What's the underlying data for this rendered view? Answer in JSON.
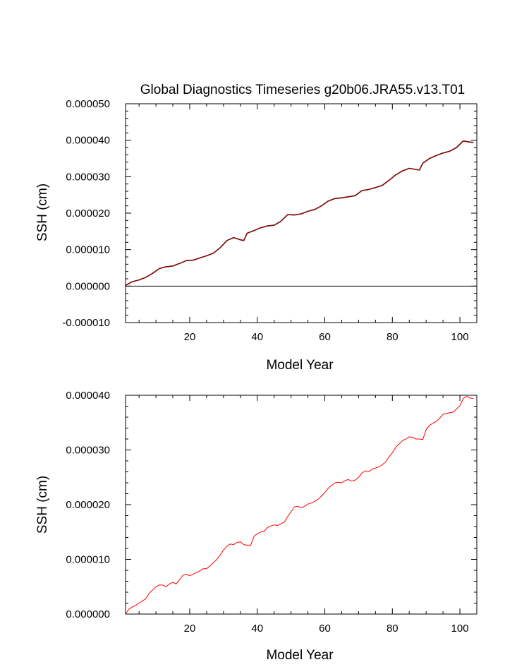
{
  "chart_data": [
    {
      "type": "line",
      "title": "Global Diagnostics Timeseries g20b06.JRA55.v13.T01",
      "xlabel": "Model Year",
      "ylabel": "SSH (cm)",
      "xlim": [
        1,
        105
      ],
      "ylim": [
        -1e-05,
        5e-05
      ],
      "xticks": [
        20,
        40,
        60,
        80,
        100
      ],
      "xtick_labels": [
        "20",
        "40",
        "60",
        "80",
        "100"
      ],
      "yticks": [
        -1e-05,
        0,
        1e-05,
        2e-05,
        3e-05,
        4e-05,
        5e-05
      ],
      "ytick_labels": [
        "-0.000010",
        "0.000000",
        "0.000010",
        "0.000020",
        "0.000030",
        "0.000040",
        "0.000050"
      ],
      "reference_line_y": 0,
      "grid": false,
      "series": [
        {
          "color": "#000000",
          "x": [
            1,
            3,
            5,
            7,
            9,
            11,
            13,
            15,
            17,
            19,
            21,
            23,
            25,
            27,
            29,
            31,
            33,
            35,
            36,
            37,
            39,
            41,
            43,
            45,
            47,
            49,
            51,
            53,
            55,
            57,
            59,
            61,
            63,
            65,
            67,
            69,
            71,
            73,
            75,
            77,
            79,
            81,
            83,
            85,
            87,
            88,
            89,
            91,
            93,
            95,
            97,
            99,
            101,
            103,
            104
          ],
          "values": [
            2e-07,
            1.2e-06,
            1.7e-06,
            2.4e-06,
            3.5e-06,
            4.8e-06,
            5.3e-06,
            5.5e-06,
            6.2e-06,
            7e-06,
            7.1e-06,
            7.7e-06,
            8.3e-06,
            9e-06,
            1.05e-05,
            1.25e-05,
            1.33e-05,
            1.27e-05,
            1.25e-05,
            1.45e-05,
            1.52e-05,
            1.6e-05,
            1.65e-05,
            1.67e-05,
            1.78e-05,
            1.96e-05,
            1.95e-05,
            1.98e-05,
            2.05e-05,
            2.1e-05,
            2.2e-05,
            2.33e-05,
            2.4e-05,
            2.42e-05,
            2.45e-05,
            2.48e-05,
            2.62e-05,
            2.65e-05,
            2.7e-05,
            2.76e-05,
            2.9e-05,
            3.05e-05,
            3.16e-05,
            3.23e-05,
            3.2e-05,
            3.18e-05,
            3.37e-05,
            3.5e-05,
            3.58e-05,
            3.65e-05,
            3.7e-05,
            3.8e-05,
            3.98e-05,
            3.95e-05,
            3.94e-05
          ]
        },
        {
          "color": "#c00000",
          "x": [
            1,
            3,
            5,
            7,
            9,
            11,
            13,
            15,
            17,
            19,
            21,
            23,
            25,
            27,
            29,
            31,
            33,
            35,
            36,
            37,
            39,
            41,
            43,
            45,
            47,
            49,
            51,
            53,
            55,
            57,
            59,
            61,
            63,
            65,
            67,
            69,
            71,
            73,
            75,
            77,
            79,
            81,
            83,
            85,
            87,
            88,
            89,
            91,
            93,
            95,
            97,
            99,
            101,
            103,
            104
          ],
          "values": [
            2e-07,
            1.2e-06,
            1.7e-06,
            2.4e-06,
            3.5e-06,
            4.8e-06,
            5.3e-06,
            5.5e-06,
            6.2e-06,
            7e-06,
            7.1e-06,
            7.7e-06,
            8.3e-06,
            9e-06,
            1.05e-05,
            1.25e-05,
            1.33e-05,
            1.27e-05,
            1.25e-05,
            1.45e-05,
            1.52e-05,
            1.6e-05,
            1.65e-05,
            1.67e-05,
            1.78e-05,
            1.96e-05,
            1.95e-05,
            1.98e-05,
            2.05e-05,
            2.1e-05,
            2.2e-05,
            2.33e-05,
            2.4e-05,
            2.42e-05,
            2.45e-05,
            2.48e-05,
            2.62e-05,
            2.65e-05,
            2.7e-05,
            2.76e-05,
            2.9e-05,
            3.05e-05,
            3.16e-05,
            3.23e-05,
            3.2e-05,
            3.18e-05,
            3.37e-05,
            3.5e-05,
            3.58e-05,
            3.65e-05,
            3.7e-05,
            3.8e-05,
            3.98e-05,
            3.95e-05,
            3.94e-05
          ]
        }
      ]
    },
    {
      "type": "line",
      "title": "",
      "xlabel": "Model Year",
      "ylabel": "SSH (cm)",
      "xlim": [
        1,
        105
      ],
      "ylim": [
        0,
        4e-05
      ],
      "xticks": [
        20,
        40,
        60,
        80,
        100
      ],
      "xtick_labels": [
        "20",
        "40",
        "60",
        "80",
        "100"
      ],
      "yticks": [
        0,
        1e-05,
        2e-05,
        3e-05,
        4e-05
      ],
      "ytick_labels": [
        "0.000000",
        "0.000010",
        "0.000020",
        "0.000030",
        "0.000040"
      ],
      "grid": false,
      "series": [
        {
          "color": "#ff0000",
          "x": [
            1,
            2,
            3,
            4,
            5,
            6,
            7,
            8,
            9,
            10,
            11,
            12,
            13,
            14,
            15,
            16,
            17,
            18,
            19,
            20,
            21,
            22,
            23,
            24,
            25,
            26,
            27,
            28,
            29,
            30,
            31,
            32,
            33,
            34,
            35,
            36,
            37,
            38,
            39,
            40,
            41,
            42,
            43,
            44,
            45,
            46,
            47,
            48,
            49,
            50,
            51,
            52,
            53,
            54,
            55,
            56,
            57,
            58,
            59,
            60,
            61,
            62,
            63,
            64,
            65,
            66,
            67,
            68,
            69,
            70,
            71,
            72,
            73,
            74,
            75,
            76,
            77,
            78,
            79,
            80,
            81,
            82,
            83,
            84,
            85,
            86,
            87,
            88,
            89,
            90,
            91,
            92,
            93,
            94,
            95,
            96,
            97,
            98,
            99,
            100,
            101,
            102,
            103,
            104
          ],
          "values": [
            0.0,
            9e-07,
            1.3e-06,
            1.6e-06,
            2e-06,
            2.4e-06,
            2.8e-06,
            3.8e-06,
            4.4e-06,
            5e-06,
            5.3e-06,
            5.3e-06,
            5e-06,
            5.5e-06,
            5.8e-06,
            5.5e-06,
            6.3e-06,
            7.1e-06,
            7.3e-06,
            7e-06,
            7.3e-06,
            7.6e-06,
            7.9e-06,
            8.3e-06,
            8.3e-06,
            8.8e-06,
            9.4e-06,
            1e-05,
            1.08e-05,
            1.17e-05,
            1.24e-05,
            1.28e-05,
            1.27e-05,
            1.31e-05,
            1.32e-05,
            1.27e-05,
            1.26e-05,
            1.25e-05,
            1.42e-05,
            1.47e-05,
            1.5e-05,
            1.51e-05,
            1.58e-05,
            1.61e-05,
            1.63e-05,
            1.62e-05,
            1.65e-05,
            1.68e-05,
            1.78e-05,
            1.87e-05,
            1.96e-05,
            1.97e-05,
            1.94e-05,
            1.97e-05,
            2.01e-05,
            2.03e-05,
            2.06e-05,
            2.1e-05,
            2.16e-05,
            2.22e-05,
            2.3e-05,
            2.35e-05,
            2.4e-05,
            2.41e-05,
            2.4e-05,
            2.44e-05,
            2.46e-05,
            2.43e-05,
            2.45e-05,
            2.5e-05,
            2.58e-05,
            2.62e-05,
            2.6e-05,
            2.65e-05,
            2.67e-05,
            2.69e-05,
            2.73e-05,
            2.78e-05,
            2.87e-05,
            2.95e-05,
            3.05e-05,
            3.11e-05,
            3.17e-05,
            3.2e-05,
            3.24e-05,
            3.23e-05,
            3.2e-05,
            3.2e-05,
            3.19e-05,
            3.37e-05,
            3.45e-05,
            3.49e-05,
            3.52e-05,
            3.58e-05,
            3.65e-05,
            3.67e-05,
            3.68e-05,
            3.69e-05,
            3.75e-05,
            3.81e-05,
            3.94e-05,
            3.98e-05,
            3.95e-05,
            3.94e-05
          ]
        }
      ]
    }
  ]
}
